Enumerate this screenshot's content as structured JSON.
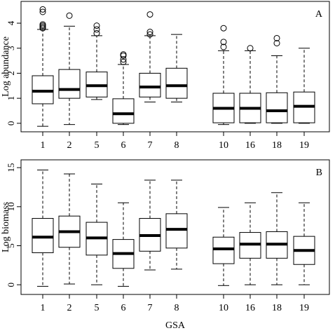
{
  "chart_data": [
    {
      "type": "box",
      "annotation": "A",
      "ylabel": "Log abundance",
      "categories": [
        "1",
        "2",
        "5",
        "6",
        "7",
        "8",
        "10",
        "16",
        "18",
        "19"
      ],
      "ylim": [
        -0.34,
        4.87
      ],
      "yticks": [
        0,
        1,
        2,
        3,
        4
      ],
      "boxes": [
        {
          "low": -0.12,
          "q1": 0.78,
          "median": 1.28,
          "q3": 1.9,
          "high": 3.75,
          "outliers": [
            3.8,
            3.85,
            3.9,
            3.95,
            4.45,
            4.55
          ]
        },
        {
          "low": -0.05,
          "q1": 1.0,
          "median": 1.35,
          "q3": 2.15,
          "high": 3.88,
          "outliers": [
            4.3
          ]
        },
        {
          "low": 0.95,
          "q1": 1.05,
          "median": 1.5,
          "q3": 2.05,
          "high": 3.5,
          "outliers": [
            3.6,
            3.75,
            3.9
          ]
        },
        {
          "low": -0.05,
          "q1": 0.0,
          "median": 0.38,
          "q3": 0.98,
          "high": 2.35,
          "outliers": [
            2.45,
            2.55,
            2.7,
            2.75
          ]
        },
        {
          "low": 0.85,
          "q1": 1.05,
          "median": 1.45,
          "q3": 2.0,
          "high": 3.5,
          "outliers": [
            3.55,
            3.65,
            4.35
          ]
        },
        {
          "low": 0.85,
          "q1": 1.0,
          "median": 1.5,
          "q3": 2.2,
          "high": 3.55,
          "outliers": []
        },
        {
          "low": -0.05,
          "q1": 0.02,
          "median": 0.6,
          "q3": 1.2,
          "high": 2.9,
          "outliers": [
            3.05,
            3.25,
            3.8
          ]
        },
        {
          "low": 0.0,
          "q1": 0.02,
          "median": 0.6,
          "q3": 1.2,
          "high": 2.9,
          "outliers": [
            3.0
          ]
        },
        {
          "low": 0.0,
          "q1": 0.02,
          "median": 0.5,
          "q3": 1.22,
          "high": 2.7,
          "outliers": [
            3.2,
            3.4
          ]
        },
        {
          "low": 0.0,
          "q1": 0.02,
          "median": 0.68,
          "q3": 1.25,
          "high": 3.0,
          "outliers": []
        }
      ]
    },
    {
      "type": "box",
      "annotation": "B",
      "ylabel": "Log biomass",
      "xlabel": "GSA",
      "categories": [
        "1",
        "2",
        "5",
        "6",
        "7",
        "8",
        "10",
        "16",
        "18",
        "19"
      ],
      "ylim": [
        -1.24,
        16.0
      ],
      "yticks": [
        0,
        5,
        10,
        15
      ],
      "boxes": [
        {
          "low": -0.2,
          "q1": 4.1,
          "median": 6.1,
          "q3": 8.5,
          "high": 14.7,
          "outliers": []
        },
        {
          "low": 0.1,
          "q1": 4.8,
          "median": 6.8,
          "q3": 8.8,
          "high": 14.2,
          "outliers": []
        },
        {
          "low": 0.0,
          "q1": 3.8,
          "median": 6.0,
          "q3": 8.0,
          "high": 12.9,
          "outliers": []
        },
        {
          "low": -0.2,
          "q1": 2.1,
          "median": 4.0,
          "q3": 5.8,
          "high": 10.5,
          "outliers": []
        },
        {
          "low": 1.9,
          "q1": 4.3,
          "median": 6.3,
          "q3": 8.5,
          "high": 13.4,
          "outliers": []
        },
        {
          "low": 2.0,
          "q1": 4.7,
          "median": 7.1,
          "q3": 9.1,
          "high": 13.4,
          "outliers": []
        },
        {
          "low": -0.1,
          "q1": 2.7,
          "median": 4.6,
          "q3": 6.1,
          "high": 9.9,
          "outliers": []
        },
        {
          "low": 0.0,
          "q1": 3.4,
          "median": 5.2,
          "q3": 6.7,
          "high": 10.5,
          "outliers": []
        },
        {
          "low": 0.0,
          "q1": 3.4,
          "median": 5.2,
          "q3": 6.8,
          "high": 11.8,
          "outliers": []
        },
        {
          "low": 0.0,
          "q1": 2.6,
          "median": 4.4,
          "q3": 6.2,
          "high": 10.5,
          "outliers": []
        }
      ]
    }
  ]
}
